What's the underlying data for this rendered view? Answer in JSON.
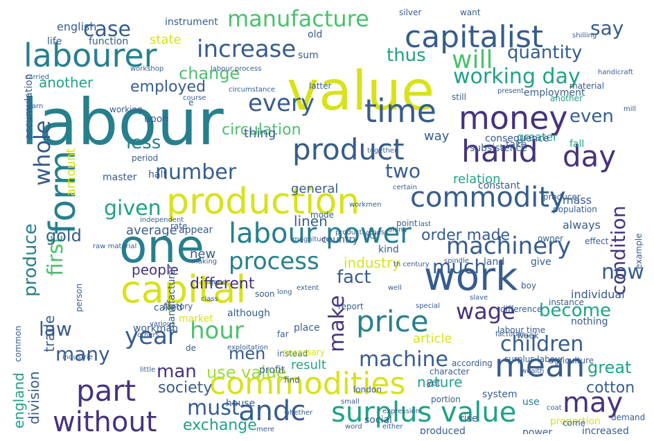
{
  "palette": {
    "yellow": "#d8e219",
    "lime": "#a0da39",
    "green": "#4ac16d",
    "teal": "#1fa187",
    "cyan": "#277f8e",
    "blue": "#365c8d",
    "indigo": "#46327e",
    "purple": "#440154"
  },
  "words": [
    {
      "text": "labour",
      "color": "cyan"
    },
    {
      "text": "value",
      "color": "yellow"
    },
    {
      "text": "production",
      "color": "yellow"
    },
    {
      "text": "capital",
      "color": "yellow"
    },
    {
      "text": "commodities",
      "color": "yellow"
    },
    {
      "text": "capitalist",
      "color": "blue"
    },
    {
      "text": "labourer",
      "color": "cyan"
    },
    {
      "text": "money",
      "color": "indigo"
    },
    {
      "text": "work",
      "color": "blue"
    },
    {
      "text": "one",
      "color": "cyan"
    },
    {
      "text": "labour power",
      "color": "cyan"
    },
    {
      "text": "form",
      "color": "cyan"
    },
    {
      "text": "commodity",
      "color": "blue"
    },
    {
      "text": "product",
      "color": "blue"
    },
    {
      "text": "time",
      "color": "blue"
    },
    {
      "text": "day",
      "color": "indigo"
    },
    {
      "text": "hand",
      "color": "indigo"
    },
    {
      "text": "price",
      "color": "cyan"
    },
    {
      "text": "mean",
      "color": "blue"
    },
    {
      "text": "part",
      "color": "indigo"
    },
    {
      "text": "year",
      "color": "blue"
    },
    {
      "text": "hour",
      "color": "green"
    },
    {
      "text": "surplus value",
      "color": "teal"
    },
    {
      "text": "andc",
      "color": "blue"
    },
    {
      "text": "without",
      "color": "indigo"
    },
    {
      "text": "may",
      "color": "indigo"
    },
    {
      "text": "machinery",
      "color": "blue"
    },
    {
      "text": "process",
      "color": "cyan"
    },
    {
      "text": "increase",
      "color": "blue"
    },
    {
      "text": "manufacture",
      "color": "green"
    },
    {
      "text": "will",
      "color": "green"
    },
    {
      "text": "every",
      "color": "blue"
    },
    {
      "text": "working day",
      "color": "teal"
    },
    {
      "text": "whole",
      "color": "blue"
    },
    {
      "text": "first",
      "color": "green"
    },
    {
      "text": "machine",
      "color": "blue"
    },
    {
      "text": "children",
      "color": "blue"
    },
    {
      "text": "condition",
      "color": "indigo"
    },
    {
      "text": "wage",
      "color": "indigo"
    },
    {
      "text": "much",
      "color": "blue"
    },
    {
      "text": "now",
      "color": "blue"
    },
    {
      "text": "make",
      "color": "indigo"
    },
    {
      "text": "fact",
      "color": "blue"
    },
    {
      "text": "become",
      "color": "teal"
    },
    {
      "text": "men",
      "color": "blue"
    },
    {
      "text": "man",
      "color": "indigo"
    },
    {
      "text": "must",
      "color": "blue"
    },
    {
      "text": "many",
      "color": "blue"
    },
    {
      "text": "law",
      "color": "blue"
    },
    {
      "text": "gold",
      "color": "blue"
    },
    {
      "text": "produce",
      "color": "cyan"
    },
    {
      "text": "say",
      "color": "blue"
    },
    {
      "text": "quantity",
      "color": "blue"
    },
    {
      "text": "change",
      "color": "green"
    },
    {
      "text": "case",
      "color": "blue"
    },
    {
      "text": "thus",
      "color": "teal"
    },
    {
      "text": "two",
      "color": "blue"
    },
    {
      "text": "number",
      "color": "blue"
    },
    {
      "text": "given",
      "color": "teal"
    },
    {
      "text": "less",
      "color": "cyan"
    },
    {
      "text": "circulation",
      "color": "green"
    },
    {
      "text": "use value",
      "color": "lime"
    },
    {
      "text": "exchange",
      "color": "teal"
    },
    {
      "text": "great",
      "color": "teal"
    },
    {
      "text": "cotton",
      "color": "blue"
    },
    {
      "text": "society",
      "color": "blue"
    },
    {
      "text": "division",
      "color": "blue"
    },
    {
      "text": "england",
      "color": "teal"
    },
    {
      "text": "employed",
      "color": "blue"
    },
    {
      "text": "another",
      "color": "teal"
    },
    {
      "text": "even",
      "color": "blue"
    },
    {
      "text": "order made",
      "color": "blue"
    },
    {
      "text": "linen",
      "color": "blue"
    },
    {
      "text": "people",
      "color": "indigo"
    },
    {
      "text": "different",
      "color": "indigo"
    },
    {
      "text": "industry",
      "color": "yellow"
    },
    {
      "text": "trade",
      "color": "blue"
    },
    {
      "text": "general",
      "color": "blue"
    },
    {
      "text": "relation",
      "color": "teal"
    },
    {
      "text": "thing",
      "color": "blue"
    },
    {
      "text": "state",
      "color": "yellow"
    },
    {
      "text": "way",
      "color": "blue"
    },
    {
      "text": "greater",
      "color": "teal"
    },
    {
      "text": "result",
      "color": "teal"
    },
    {
      "text": "nature",
      "color": "teal"
    },
    {
      "text": "individual",
      "color": "blue"
    },
    {
      "text": "article",
      "color": "yellow"
    },
    {
      "text": "amount",
      "color": "yellow"
    },
    {
      "text": "average",
      "color": "blue"
    },
    {
      "text": "new",
      "color": "blue"
    },
    {
      "text": "mass",
      "color": "blue"
    },
    {
      "text": "always",
      "color": "blue"
    },
    {
      "text": "instrument",
      "color": "blue"
    },
    {
      "text": "english",
      "color": "blue"
    },
    {
      "text": "function",
      "color": "blue"
    },
    {
      "text": "life",
      "color": "blue"
    },
    {
      "text": "accumulation",
      "color": "blue"
    },
    {
      "text": "workman",
      "color": "blue"
    },
    {
      "text": "master",
      "color": "blue"
    },
    {
      "text": "country",
      "color": "blue"
    },
    {
      "text": "kind",
      "color": "blue"
    },
    {
      "text": "land",
      "color": "blue"
    },
    {
      "text": "fall",
      "color": "teal"
    },
    {
      "text": "take",
      "color": "blue"
    },
    {
      "text": "nothing",
      "color": "blue"
    },
    {
      "text": "manufacturer",
      "color": "blue"
    },
    {
      "text": "system",
      "color": "blue"
    },
    {
      "text": "use",
      "color": "cyan"
    },
    {
      "text": "house",
      "color": "blue"
    },
    {
      "text": "produced",
      "color": "blue"
    },
    {
      "text": "power",
      "color": "blue"
    },
    {
      "text": "increased",
      "color": "blue"
    },
    {
      "text": "proportion",
      "color": "yellow"
    },
    {
      "text": "rise",
      "color": "blue"
    },
    {
      "text": "social",
      "color": "blue"
    },
    {
      "text": "profit",
      "color": "blue"
    },
    {
      "text": "instead",
      "color": "blue"
    },
    {
      "text": "although",
      "color": "blue"
    },
    {
      "text": "place",
      "color": "blue"
    },
    {
      "text": "market",
      "color": "yellow"
    },
    {
      "text": "called",
      "color": "blue"
    },
    {
      "text": "factory",
      "color": "blue"
    },
    {
      "text": "half",
      "color": "blue"
    },
    {
      "text": "appear",
      "color": "blue"
    },
    {
      "text": "upon",
      "color": "blue"
    },
    {
      "text": "old",
      "color": "blue"
    },
    {
      "text": "sum",
      "color": "blue"
    },
    {
      "text": "latter",
      "color": "blue"
    },
    {
      "text": "still",
      "color": "blue"
    },
    {
      "text": "material",
      "color": "blue"
    },
    {
      "text": "another",
      "color": "teal"
    },
    {
      "text": "employment",
      "color": "blue"
    },
    {
      "text": "consequence",
      "color": "blue"
    },
    {
      "text": "subsistence",
      "color": "blue"
    },
    {
      "text": "constant",
      "color": "blue"
    },
    {
      "text": "effect",
      "color": "blue"
    },
    {
      "text": "owner",
      "color": "blue"
    },
    {
      "text": "give",
      "color": "blue"
    },
    {
      "text": "london",
      "color": "blue"
    },
    {
      "text": "de",
      "color": "blue"
    },
    {
      "text": "common",
      "color": "blue"
    },
    {
      "text": "person",
      "color": "blue"
    },
    {
      "text": "report",
      "color": "blue"
    },
    {
      "text": "period",
      "color": "blue"
    },
    {
      "text": "working",
      "color": "blue"
    },
    {
      "text": "e",
      "color": "blue"
    },
    {
      "text": "rate",
      "color": "blue"
    },
    {
      "text": "necessary",
      "color": "yellow"
    },
    {
      "text": "far",
      "color": "blue"
    },
    {
      "text": "find",
      "color": "blue"
    },
    {
      "text": "yet",
      "color": "blue"
    },
    {
      "text": "portion",
      "color": "blue"
    },
    {
      "text": "soon",
      "color": "blue"
    },
    {
      "text": "act",
      "color": "blue"
    },
    {
      "text": "point",
      "color": "blue"
    },
    {
      "text": "mode",
      "color": "blue"
    },
    {
      "text": "silver",
      "color": "blue"
    },
    {
      "text": "want",
      "color": "blue"
    },
    {
      "text": "boy",
      "color": "blue"
    },
    {
      "text": "week",
      "color": "blue"
    },
    {
      "text": "labour time",
      "color": "blue"
    },
    {
      "text": "difference",
      "color": "blue"
    },
    {
      "text": "producer",
      "color": "blue"
    },
    {
      "text": "population",
      "color": "blue"
    },
    {
      "text": "instance",
      "color": "blue"
    },
    {
      "text": "example",
      "color": "blue"
    },
    {
      "text": "come",
      "color": "blue"
    },
    {
      "text": "demand",
      "color": "blue"
    },
    {
      "text": "character",
      "color": "blue"
    },
    {
      "text": "surplus labour",
      "color": "blue"
    },
    {
      "text": "agriculture",
      "color": "blue"
    },
    {
      "text": "according",
      "color": "blue"
    },
    {
      "text": "either",
      "color": "blue"
    },
    {
      "text": "expression",
      "color": "blue"
    },
    {
      "text": "whether",
      "color": "blue"
    },
    {
      "text": "long",
      "color": "blue"
    },
    {
      "text": "class",
      "color": "blue"
    },
    {
      "text": "good",
      "color": "blue"
    },
    {
      "text": "present",
      "color": "blue"
    },
    {
      "text": "carried",
      "color": "blue"
    },
    {
      "text": "yarn",
      "color": "blue"
    },
    {
      "text": "workshop",
      "color": "blue"
    },
    {
      "text": "labour process",
      "color": "blue"
    },
    {
      "text": "circumstance",
      "color": "blue"
    },
    {
      "text": "course",
      "color": "blue"
    },
    {
      "text": "magnitude",
      "color": "blue"
    },
    {
      "text": "exploitation",
      "color": "blue"
    },
    {
      "text": "others",
      "color": "blue"
    },
    {
      "text": "well",
      "color": "blue"
    },
    {
      "text": "special",
      "color": "blue"
    },
    {
      "text": "extent",
      "color": "blue"
    },
    {
      "text": "making",
      "color": "blue"
    },
    {
      "text": "independent",
      "color": "blue"
    },
    {
      "text": "raw material",
      "color": "blue"
    },
    {
      "text": "industrie",
      "color": "blue"
    },
    {
      "text": "workmen",
      "color": "blue"
    },
    {
      "text": "productiveness",
      "color": "blue"
    },
    {
      "text": "th century",
      "color": "blue"
    },
    {
      "text": "alone",
      "color": "blue"
    },
    {
      "text": "various",
      "color": "blue"
    },
    {
      "text": "little",
      "color": "blue"
    },
    {
      "text": "small",
      "color": "blue"
    },
    {
      "text": "mere",
      "color": "blue"
    },
    {
      "text": "word",
      "color": "blue"
    },
    {
      "text": "together",
      "color": "blue"
    },
    {
      "text": "certain",
      "color": "blue"
    },
    {
      "text": "last",
      "color": "blue"
    },
    {
      "text": "spindle",
      "color": "blue"
    },
    {
      "text": "slave",
      "color": "blue"
    },
    {
      "text": "factories",
      "color": "blue"
    },
    {
      "text": "wealth",
      "color": "blue"
    },
    {
      "text": "coat",
      "color": "blue"
    },
    {
      "text": "shilling",
      "color": "blue"
    },
    {
      "text": "handicraft",
      "color": "blue"
    },
    {
      "text": "mill",
      "color": "blue"
    }
  ]
}
